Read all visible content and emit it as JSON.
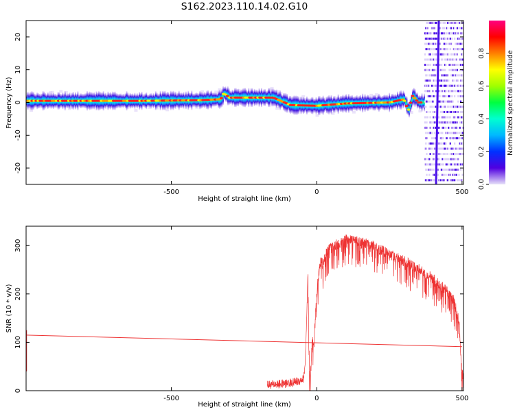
{
  "title": "S162.2023.110.14.02.G10",
  "chart_data": [
    {
      "type": "heatmap",
      "title": "S162.2023.110.14.02.G10",
      "xlabel": "Height of straight line (km)",
      "ylabel": "Frequency (Hz)",
      "xlim": [
        -1000,
        505
      ],
      "ylim": [
        -25,
        25
      ],
      "xticks": [
        -500,
        0,
        500
      ],
      "yticks": [
        -20,
        -10,
        0,
        10,
        20
      ],
      "colorbar": {
        "label": "Normalized spectral amplitude",
        "range": [
          0,
          1
        ],
        "ticks": [
          0.0,
          0.2,
          0.4,
          0.6,
          0.8
        ],
        "tick_labels": [
          "0.0",
          "0.2",
          "0.4",
          "0.6",
          "0.8"
        ],
        "colormap": [
          "#e6e0f8",
          "#5000e0",
          "#0030ff",
          "#00b8ff",
          "#00ffd0",
          "#00ff40",
          "#a0ff00",
          "#ffff00",
          "#ff8000",
          "#ff0000",
          "#ff0080"
        ]
      },
      "ridge": [
        {
          "x": -1000,
          "freq": 0.5
        },
        {
          "x": -600,
          "freq": 0.5
        },
        {
          "x": -400,
          "freq": 0.7
        },
        {
          "x": -330,
          "freq": 1.0
        },
        {
          "x": -320,
          "freq": 2.8
        },
        {
          "x": -300,
          "freq": 1.5
        },
        {
          "x": -150,
          "freq": 1.5
        },
        {
          "x": -90,
          "freq": -0.8
        },
        {
          "x": 0,
          "freq": -1.0
        },
        {
          "x": 100,
          "freq": -0.3
        },
        {
          "x": 250,
          "freq": 0.0
        },
        {
          "x": 300,
          "freq": 1.0
        },
        {
          "x": 315,
          "freq": -2.5
        },
        {
          "x": 330,
          "freq": 2.0
        },
        {
          "x": 350,
          "freq": 0.0
        }
      ],
      "noise_region": [
        370,
        505
      ],
      "vertical_line_x": 420
    },
    {
      "type": "line",
      "xlabel": "Height of straight line (km)",
      "ylabel": "SNR (10 * v/v)",
      "xlim": [
        -1000,
        505
      ],
      "ylim": [
        0,
        340
      ],
      "xticks": [
        -500,
        0,
        500
      ],
      "yticks": [
        0,
        100,
        200,
        300
      ],
      "series": [
        {
          "color": "#ee3333",
          "x": [
            -170,
            -100,
            -60,
            -45,
            -40,
            -35,
            -30,
            -25,
            -20,
            -15,
            -10,
            -5,
            0,
            5,
            10,
            15,
            20,
            30,
            50,
            100,
            150,
            200,
            250,
            300,
            350,
            400,
            450,
            470,
            480,
            490,
            495,
            500,
            505
          ],
          "y": [
            12,
            15,
            20,
            25,
            55,
            135,
            245,
            30,
            60,
            105,
            90,
            150,
            200,
            230,
            258,
            268,
            262,
            282,
            298,
            312,
            308,
            298,
            282,
            268,
            252,
            232,
            205,
            188,
            168,
            142,
            80,
            40,
            25
          ]
        },
        {
          "color": "#ee3333",
          "x": [
            -1000,
            500
          ],
          "y": [
            115,
            91
          ]
        }
      ]
    }
  ]
}
